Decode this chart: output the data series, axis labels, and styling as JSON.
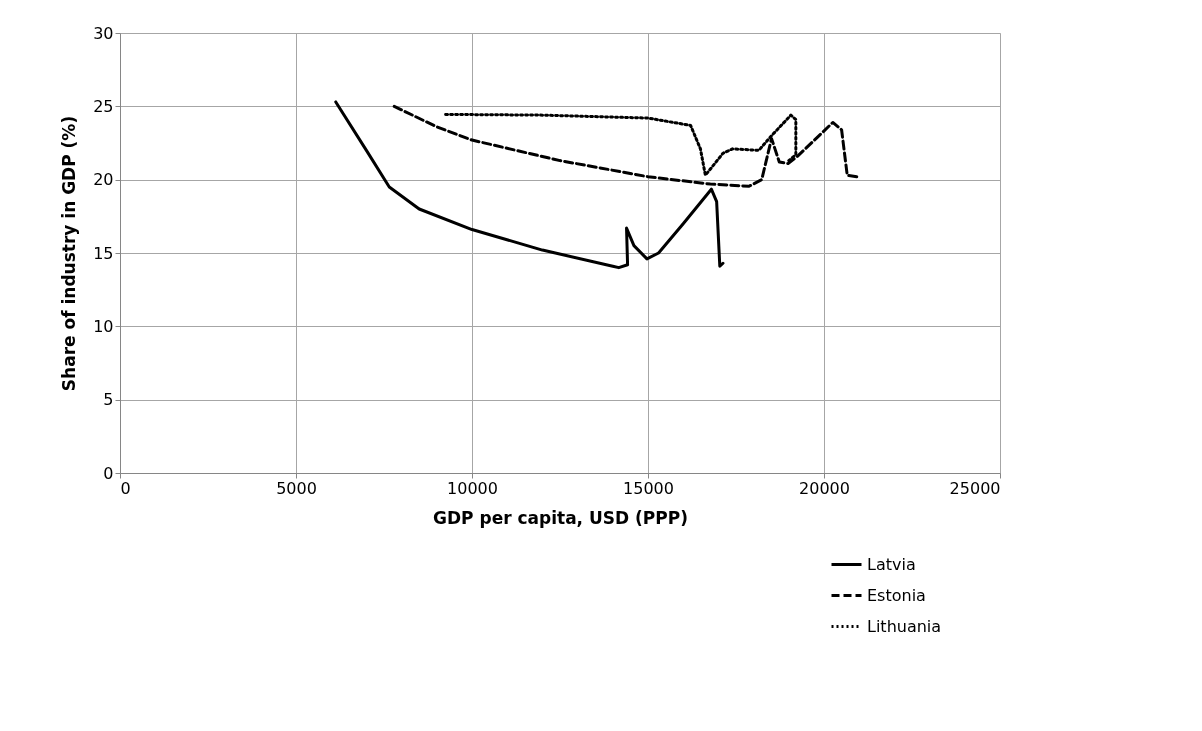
{
  "chart_data": {
    "type": "line",
    "xlabel": "GDP per capita, USD (PPP)",
    "ylabel": "Share of industry in GDP (%)",
    "xlim": [
      0,
      25000
    ],
    "xticks": [
      0,
      5000,
      10000,
      15000,
      20000,
      25000
    ],
    "ylim": [
      0,
      30
    ],
    "yticks": [
      0,
      5,
      10,
      15,
      20,
      25,
      30
    ],
    "grid": true,
    "legend": "bottom right",
    "marker": "none",
    "series": [
      {
        "name": "Latvia",
        "color": "#000000",
        "line_style": "solid",
        "x": [
          6130,
          7000,
          7650,
          8500,
          10000,
          12000,
          14000,
          14170,
          14420,
          14390,
          14600,
          14970,
          15300,
          16000,
          16800,
          16950,
          17040,
          17130
        ],
        "values": [
          25.3,
          22.0,
          19.5,
          18.0,
          16.6,
          15.2,
          14.1,
          14.0,
          14.2,
          16.7,
          15.5,
          14.6,
          15.0,
          17.0,
          19.35,
          18.5,
          14.1,
          14.3
        ]
      },
      {
        "name": "Estonia",
        "color": "#000000",
        "line_style": "dashed",
        "x": [
          7790,
          9000,
          10000,
          12500,
          15000,
          16770,
          17870,
          18230,
          18510,
          18730,
          18980,
          19250,
          20250,
          20500,
          20660,
          20940
        ],
        "values": [
          25.0,
          23.6,
          22.7,
          21.3,
          20.2,
          19.7,
          19.55,
          20.0,
          22.8,
          21.2,
          21.1,
          21.6,
          23.9,
          23.4,
          20.3,
          20.2
        ]
      },
      {
        "name": "Lithuania",
        "color": "#000000",
        "line_style": "dotted",
        "x": [
          9250,
          12000,
          15000,
          16210,
          16490,
          16630,
          17130,
          17400,
          18150,
          18510,
          19060,
          19200,
          19200,
          19000
        ],
        "values": [
          24.45,
          24.4,
          24.2,
          23.7,
          22.1,
          20.3,
          21.8,
          22.1,
          22.0,
          23.0,
          24.4,
          24.1,
          21.7,
          21.3
        ]
      }
    ]
  }
}
